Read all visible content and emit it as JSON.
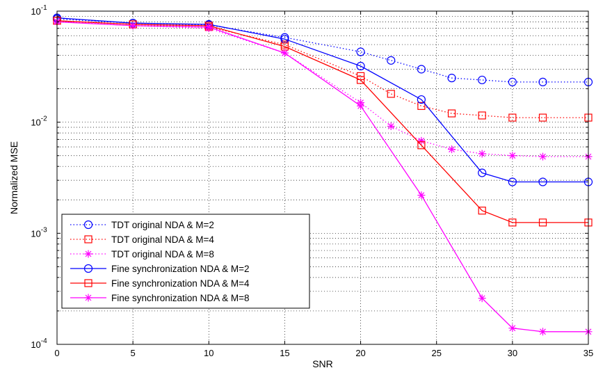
{
  "chart_data": {
    "type": "line",
    "title": "",
    "xlabel": "SNR",
    "ylabel": "Normalized MSE",
    "xlim": [
      0,
      35
    ],
    "ylim": [
      0.0001,
      0.1
    ],
    "yscale": "log",
    "grid": true,
    "legend_position": "bottom-left",
    "x_ticks": [
      "0",
      "5",
      "10",
      "15",
      "20",
      "25",
      "30",
      "35"
    ],
    "y_ticks": [
      {
        "base": "10",
        "exp": "-4"
      },
      {
        "base": "10",
        "exp": "-3"
      },
      {
        "base": "10",
        "exp": "-2"
      },
      {
        "base": "10",
        "exp": "-1"
      }
    ],
    "series": [
      {
        "name": "TDT original NDA & M=2",
        "color": "#0000ff",
        "marker": "circle",
        "line": "dotted",
        "x": [
          0,
          5,
          10,
          15,
          20,
          22,
          24,
          26,
          28,
          30,
          32,
          35
        ],
        "y": [
          0.085,
          0.078,
          0.075,
          0.058,
          0.043,
          0.036,
          0.03,
          0.025,
          0.024,
          0.023,
          0.023,
          0.023
        ]
      },
      {
        "name": "TDT original NDA & M=4",
        "color": "#ff0000",
        "marker": "square",
        "line": "dotted",
        "x": [
          0,
          5,
          10,
          15,
          20,
          22,
          24,
          26,
          28,
          30,
          32,
          35
        ],
        "y": [
          0.082,
          0.076,
          0.072,
          0.05,
          0.026,
          0.018,
          0.014,
          0.012,
          0.0115,
          0.011,
          0.011,
          0.011
        ]
      },
      {
        "name": "TDT original NDA & M=8",
        "color": "#ff00ff",
        "marker": "star",
        "line": "dotted",
        "x": [
          0,
          5,
          10,
          15,
          20,
          22,
          24,
          26,
          28,
          30,
          32,
          35
        ],
        "y": [
          0.081,
          0.074,
          0.07,
          0.042,
          0.015,
          0.0092,
          0.0068,
          0.0057,
          0.0052,
          0.005,
          0.0049,
          0.0049
        ]
      },
      {
        "name": "Fine synchronization NDA & M=2",
        "color": "#0000ff",
        "marker": "circle",
        "line": "solid",
        "x": [
          0,
          5,
          10,
          15,
          20,
          24,
          28,
          30,
          32,
          35
        ],
        "y": [
          0.087,
          0.078,
          0.076,
          0.056,
          0.032,
          0.016,
          0.0035,
          0.0029,
          0.0029,
          0.0029
        ]
      },
      {
        "name": "Fine synchronization NDA & M=4",
        "color": "#ff0000",
        "marker": "square",
        "line": "solid",
        "x": [
          0,
          5,
          10,
          15,
          20,
          24,
          28,
          30,
          32,
          35
        ],
        "y": [
          0.082,
          0.076,
          0.074,
          0.048,
          0.024,
          0.0062,
          0.0016,
          0.00125,
          0.00125,
          0.00125
        ]
      },
      {
        "name": "Fine synchronization NDA & M=8",
        "color": "#ff00ff",
        "marker": "star",
        "line": "solid",
        "x": [
          0,
          5,
          10,
          15,
          20,
          24,
          28,
          30,
          32,
          35
        ],
        "y": [
          0.08,
          0.074,
          0.072,
          0.042,
          0.014,
          0.0022,
          0.00026,
          0.00014,
          0.00013,
          0.00013
        ]
      }
    ]
  }
}
